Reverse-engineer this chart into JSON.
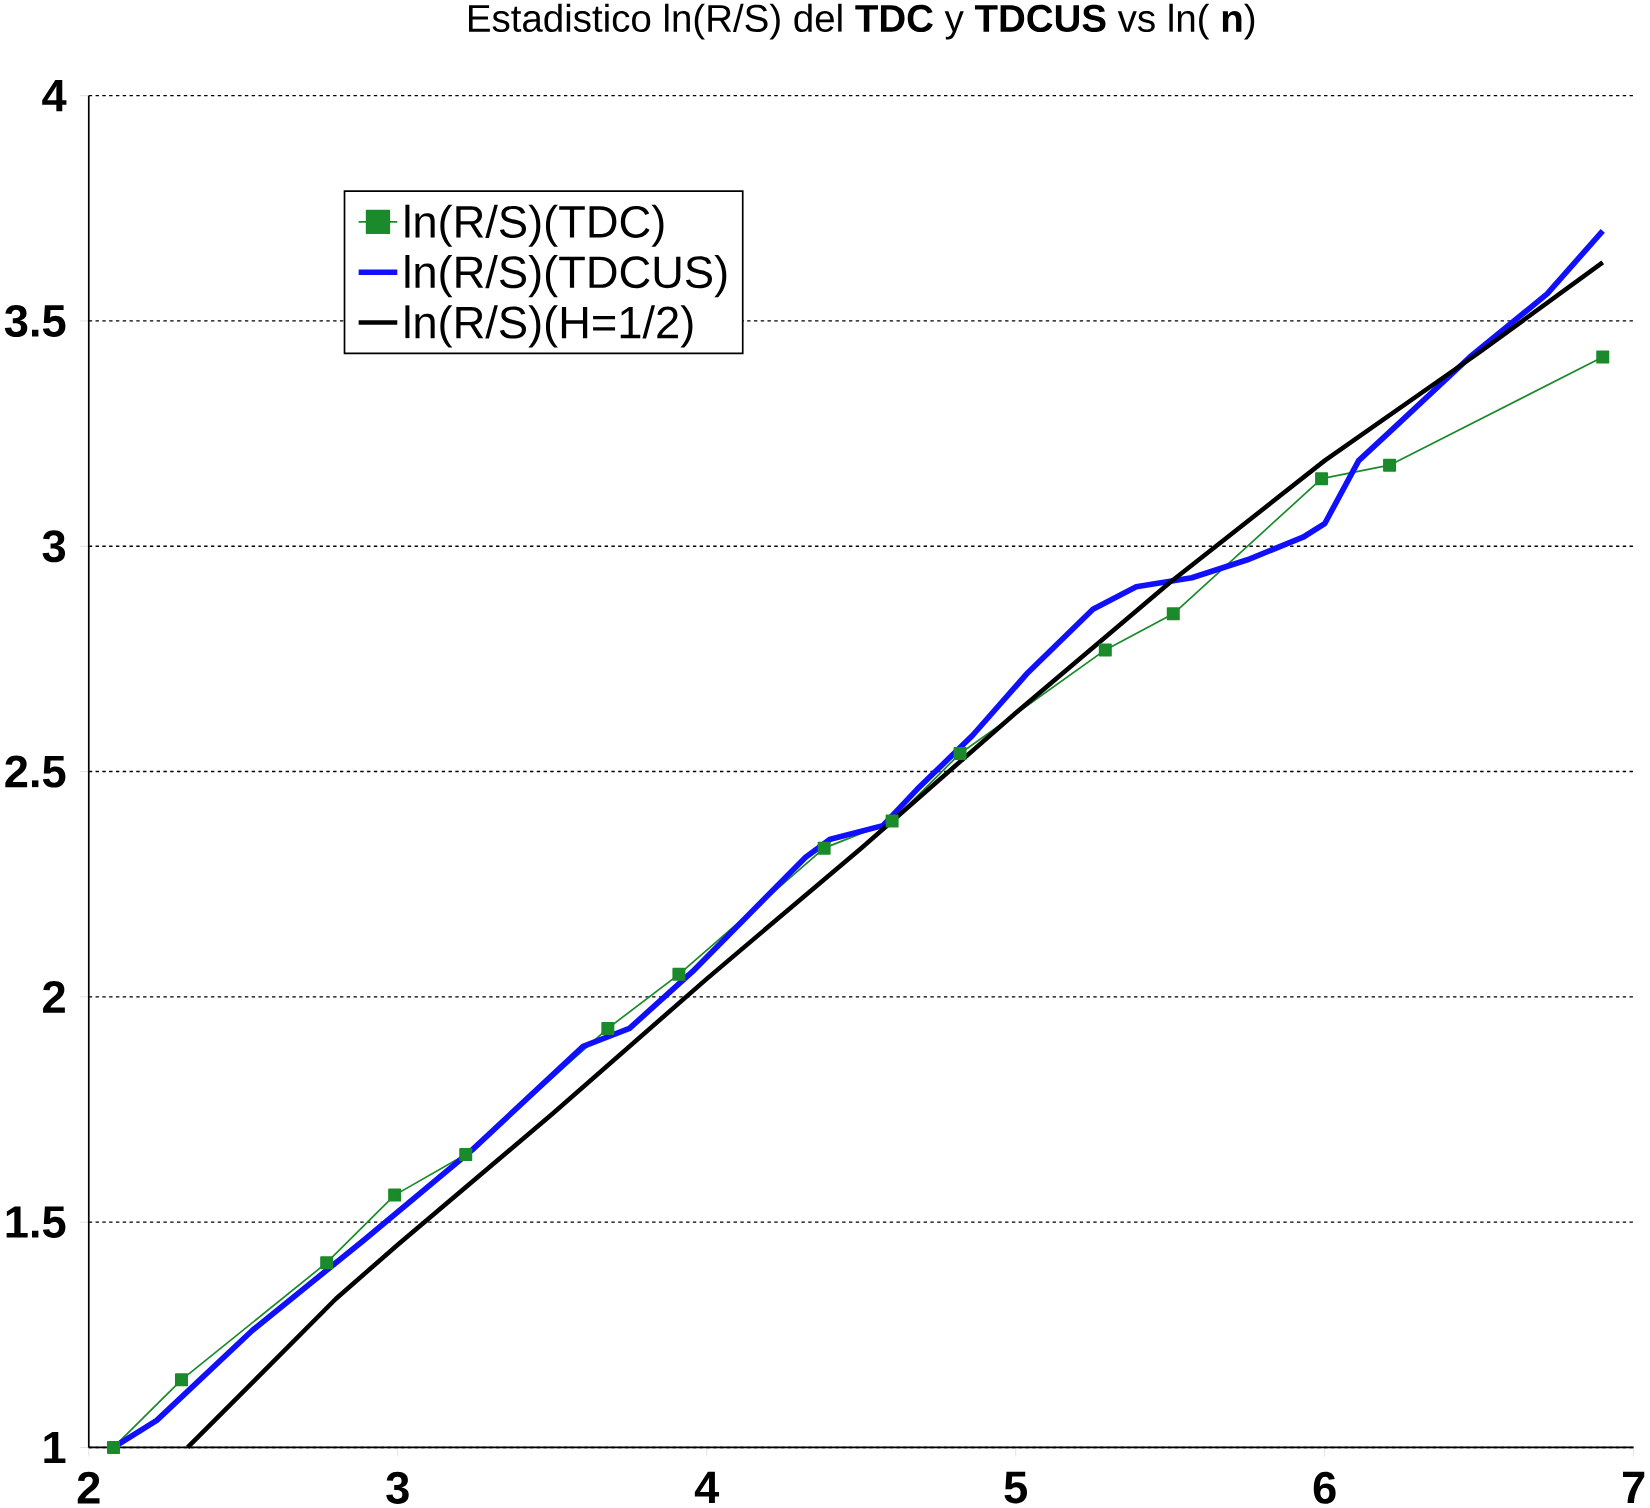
{
  "chart_data": {
    "type": "line",
    "title": "Estadistico ln(R/S) del **TDC** y **TDCUS** vs ln( **n**)",
    "xlim": [
      2,
      7
    ],
    "ylim": [
      1,
      4
    ],
    "xticks": [
      2,
      3,
      4,
      5,
      6,
      7
    ],
    "yticks": [
      1,
      1.5,
      2,
      2.5,
      3,
      3.5,
      4
    ],
    "grid": "y",
    "legend": "top left",
    "series": [
      {
        "name": "ln(R/S)(TDC)",
        "color": "#1a8a2a",
        "marker": "square",
        "x": [
          2.08,
          2.3,
          2.77,
          2.99,
          3.22,
          3.68,
          3.91,
          4.38,
          4.6,
          4.82,
          5.29,
          5.51,
          5.99,
          6.21,
          6.9
        ],
        "values": [
          1.0,
          1.15,
          1.41,
          1.56,
          1.65,
          1.93,
          2.05,
          2.33,
          2.39,
          2.54,
          2.77,
          2.85,
          3.15,
          3.18,
          3.42
        ]
      },
      {
        "name": "ln(R/S)(TDCUS)",
        "color": "#1010ff",
        "marker": "none",
        "x": [
          2.08,
          2.22,
          2.53,
          2.89,
          3.24,
          3.6,
          3.75,
          3.96,
          4.32,
          4.4,
          4.57,
          4.68,
          4.86,
          5.04,
          5.25,
          5.39,
          5.57,
          5.75,
          5.93,
          6.0,
          6.11,
          6.22,
          6.47,
          6.72,
          6.9
        ],
        "values": [
          1.0,
          1.06,
          1.26,
          1.46,
          1.66,
          1.89,
          1.93,
          2.06,
          2.31,
          2.35,
          2.38,
          2.46,
          2.58,
          2.72,
          2.86,
          2.91,
          2.93,
          2.97,
          3.02,
          3.05,
          3.19,
          3.26,
          3.42,
          3.56,
          3.7
        ]
      },
      {
        "name": "ln(R/S)(H=1/2)",
        "color": "#000000",
        "marker": "none",
        "x": [
          2.32,
          2.8,
          3.0,
          3.5,
          4.0,
          4.5,
          5.0,
          5.5,
          6.0,
          6.5,
          6.9
        ],
        "values": [
          1.0,
          1.33,
          1.45,
          1.74,
          2.04,
          2.33,
          2.63,
          2.92,
          3.19,
          3.43,
          3.63
        ]
      }
    ]
  }
}
